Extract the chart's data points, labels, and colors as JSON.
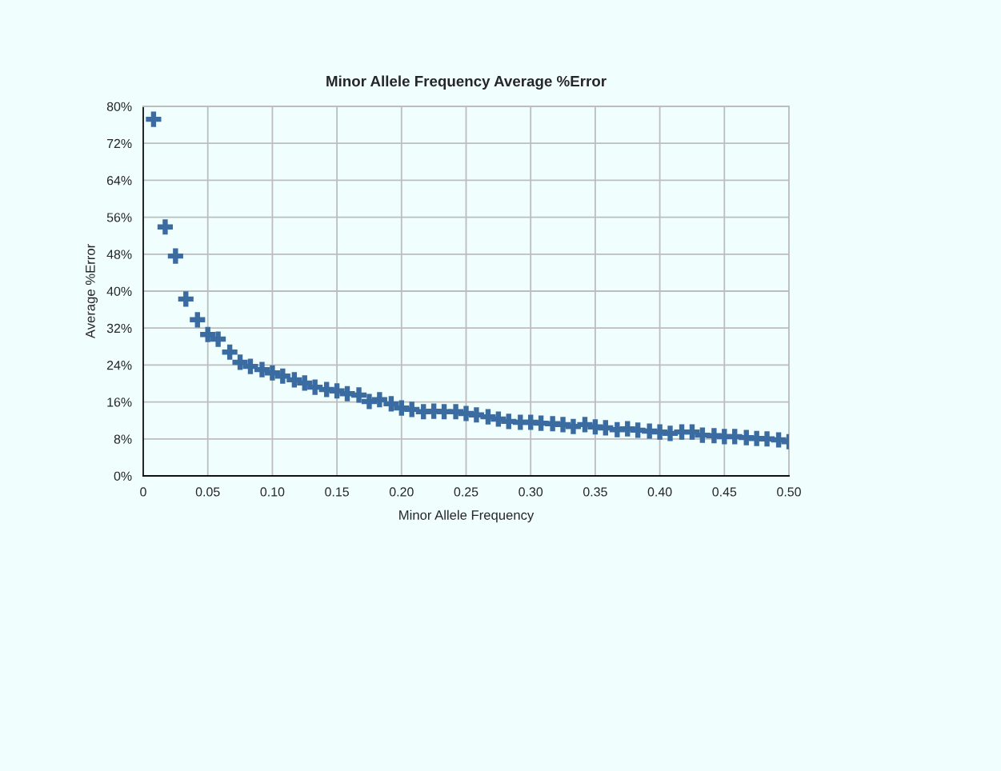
{
  "chart_data": {
    "type": "scatter",
    "title": "Minor Allele Frequency Average %Error",
    "xlabel": "Minor Allele Frequency",
    "ylabel": "Average %Error",
    "x": [
      0.008,
      0.017,
      0.025,
      0.033,
      0.042,
      0.05,
      0.058,
      0.067,
      0.075,
      0.083,
      0.092,
      0.1,
      0.108,
      0.117,
      0.125,
      0.133,
      0.142,
      0.15,
      0.158,
      0.167,
      0.175,
      0.183,
      0.192,
      0.2,
      0.208,
      0.217,
      0.225,
      0.233,
      0.242,
      0.25,
      0.258,
      0.267,
      0.275,
      0.283,
      0.292,
      0.3,
      0.308,
      0.317,
      0.325,
      0.333,
      0.342,
      0.35,
      0.358,
      0.367,
      0.375,
      0.383,
      0.392,
      0.4,
      0.408,
      0.417,
      0.425,
      0.433,
      0.442,
      0.45,
      0.458,
      0.467,
      0.475,
      0.483,
      0.492,
      0.5
    ],
    "series": [
      {
        "color": "#3a6ba1",
        "values": [
          77.2,
          53.9,
          47.6,
          38.3,
          33.8,
          30.6,
          29.6,
          26.8,
          24.6,
          23.7,
          23.0,
          22.3,
          21.6,
          20.8,
          20.1,
          19.2,
          18.7,
          18.4,
          17.8,
          17.5,
          16.1,
          16.5,
          15.6,
          14.7,
          14.4,
          13.9,
          14.0,
          13.9,
          13.9,
          13.5,
          13.2,
          12.8,
          12.3,
          11.8,
          11.6,
          11.6,
          11.4,
          11.3,
          11.1,
          10.7,
          11.1,
          10.6,
          10.4,
          10.0,
          10.2,
          9.9,
          9.7,
          9.5,
          9.2,
          9.5,
          9.5,
          8.8,
          8.7,
          8.5,
          8.5,
          8.3,
          8.1,
          8.0,
          7.8,
          7.4
        ]
      }
    ],
    "xlim": [
      0,
      0.5
    ],
    "xticks": [
      0,
      {
        "value": 0.05,
        "label": "0.05"
      },
      {
        "value": 0.1,
        "label": "0.10"
      },
      {
        "value": 0.15,
        "label": "0.15"
      },
      {
        "value": 0.2,
        "label": "0.20"
      },
      {
        "value": 0.25,
        "label": "0.25"
      },
      {
        "value": 0.3,
        "label": "0.30"
      },
      {
        "value": 0.35,
        "label": "0.35"
      },
      {
        "value": 0.4,
        "label": "0.40"
      },
      {
        "value": 0.45,
        "label": "0.45"
      },
      {
        "value": 0.5,
        "label": "0.50"
      }
    ],
    "ylim": [
      0,
      80
    ],
    "yticks": [
      {
        "value": 0,
        "label": "0%"
      },
      {
        "value": 8,
        "label": "8%"
      },
      {
        "value": 16,
        "label": "16%"
      },
      {
        "value": 24,
        "label": "24%"
      },
      {
        "value": 32,
        "label": "32%"
      },
      {
        "value": 40,
        "label": "40%"
      },
      {
        "value": 48,
        "label": "48%"
      },
      {
        "value": 56,
        "label": "56%"
      },
      {
        "value": 64,
        "label": "64%"
      },
      {
        "value": 72,
        "label": "72%"
      },
      {
        "value": 80,
        "label": "80%"
      }
    ],
    "grid": true,
    "marker": "cross"
  }
}
